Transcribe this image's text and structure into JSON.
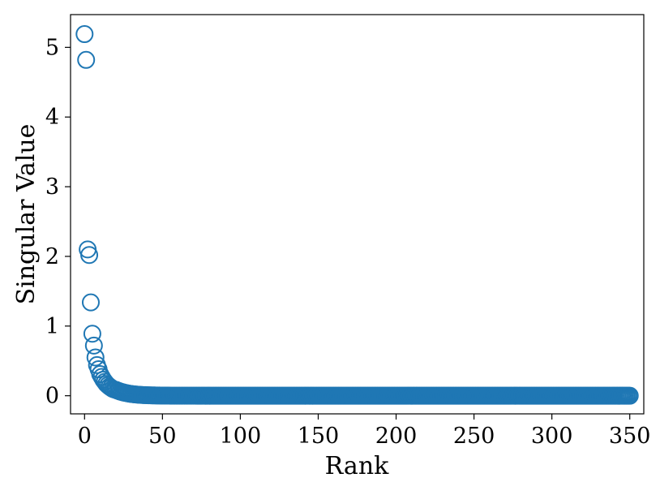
{
  "chart_data": {
    "type": "scatter",
    "xlabel": "Rank",
    "ylabel": "Singular Value",
    "xlim": [
      -9,
      359
    ],
    "ylim": [
      -0.26,
      5.47
    ],
    "xticks": [
      0,
      50,
      100,
      150,
      200,
      250,
      300,
      350
    ],
    "yticks": [
      0,
      1,
      2,
      3,
      4,
      5
    ],
    "marker": "open-circle",
    "color": "#1f77b4",
    "grid": false,
    "series": [
      {
        "points": [
          [
            0,
            5.19
          ],
          [
            1,
            4.82
          ],
          [
            2,
            2.1
          ],
          [
            3,
            2.02
          ],
          [
            4,
            1.34
          ],
          [
            5,
            0.89
          ],
          [
            6,
            0.72
          ],
          [
            7,
            0.55
          ],
          [
            8,
            0.44
          ],
          [
            9,
            0.38
          ],
          [
            10,
            0.31
          ],
          [
            11,
            0.27
          ],
          [
            12,
            0.23
          ],
          [
            13,
            0.2
          ],
          [
            14,
            0.17
          ],
          [
            15,
            0.15
          ],
          [
            16,
            0.13
          ],
          [
            17,
            0.115
          ],
          [
            18,
            0.1
          ],
          [
            19,
            0.09
          ]
        ],
        "tail": {
          "start": 20,
          "end": 350,
          "start_value": 0.085,
          "end_value": 0.0,
          "decay": 0.12
        }
      }
    ]
  }
}
